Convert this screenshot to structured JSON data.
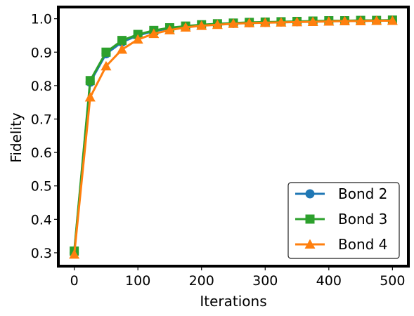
{
  "chart_data": {
    "type": "line",
    "title": "",
    "xlabel": "Iterations",
    "ylabel": "Fidelity",
    "xlim": [
      -25,
      525
    ],
    "ylim": [
      0.26,
      1.035
    ],
    "xticks": [
      0,
      100,
      200,
      300,
      400,
      500
    ],
    "yticks": [
      0.3,
      0.4,
      0.5,
      0.6,
      0.7,
      0.8,
      0.9,
      1.0
    ],
    "xtick_labels": [
      "0",
      "100",
      "200",
      "300",
      "400",
      "500"
    ],
    "ytick_labels": [
      "0.3",
      "0.4",
      "0.5",
      "0.6",
      "0.7",
      "0.8",
      "0.9",
      "1.0"
    ],
    "grid": false,
    "legend_position": "lower-right",
    "x": [
      0,
      25,
      50,
      75,
      100,
      125,
      150,
      175,
      200,
      225,
      250,
      275,
      300,
      325,
      350,
      375,
      400,
      425,
      450,
      475,
      500
    ],
    "series": [
      {
        "name": "Bond 2",
        "color": "#1f77b4",
        "marker": "circle",
        "values": [
          0.3,
          0.81,
          0.895,
          0.93,
          0.95,
          0.963,
          0.971,
          0.977,
          0.981,
          0.984,
          0.986,
          0.988,
          0.989,
          0.99,
          0.991,
          0.992,
          0.993,
          0.994,
          0.994,
          0.995,
          0.995
        ]
      },
      {
        "name": "Bond 3",
        "color": "#2ca02c",
        "marker": "square",
        "values": [
          0.305,
          0.815,
          0.9,
          0.935,
          0.953,
          0.965,
          0.973,
          0.978,
          0.982,
          0.985,
          0.987,
          0.989,
          0.99,
          0.991,
          0.992,
          0.993,
          0.994,
          0.994,
          0.995,
          0.995,
          0.996
        ]
      },
      {
        "name": "Bond 4",
        "color": "#ff7f0e",
        "marker": "triangle",
        "values": [
          0.295,
          0.765,
          0.858,
          0.908,
          0.938,
          0.955,
          0.966,
          0.974,
          0.979,
          0.982,
          0.985,
          0.987,
          0.988,
          0.989,
          0.99,
          0.991,
          0.992,
          0.993,
          0.993,
          0.994,
          0.994
        ]
      }
    ]
  }
}
